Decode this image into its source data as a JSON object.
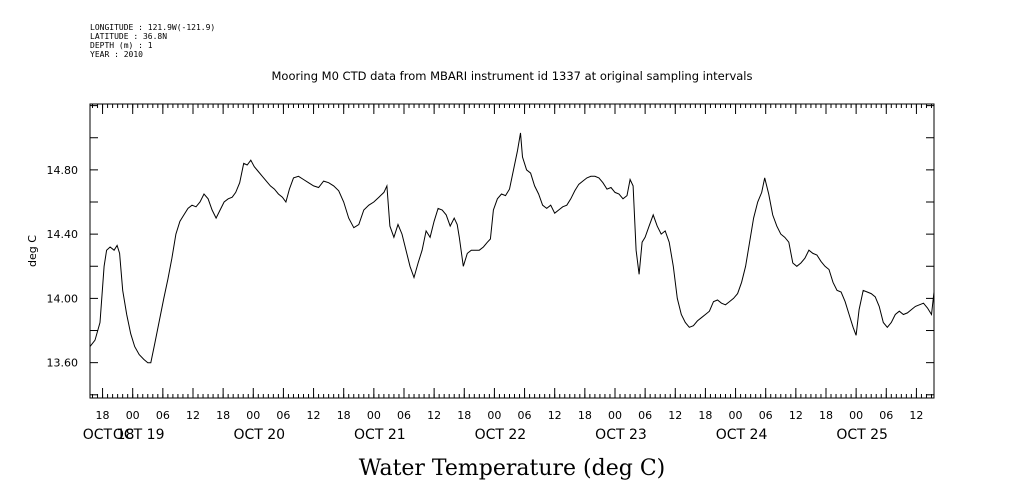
{
  "header": {
    "longitude": "LONGITUDE : 121.9W(-121.9)",
    "latitude": "LATITUDE : 36.8N",
    "depth": "DEPTH (m) : 1",
    "year": "YEAR : 2010"
  },
  "chart_data": {
    "type": "line",
    "title": "Mooring M0 CTD data from MBARI instrument id 1337 at original sampling intervals",
    "xlabel": "Water Temperature (deg C)",
    "ylabel": "deg C",
    "ylim": [
      13.38,
      15.21
    ],
    "yticks": [
      "13.60",
      "14.00",
      "14.40",
      "14.80"
    ],
    "hour_ticks": [
      "18",
      "00",
      "06",
      "12",
      "18",
      "00",
      "06",
      "12",
      "18",
      "00",
      "06",
      "12",
      "18",
      "00",
      "06",
      "12",
      "18",
      "00",
      "06",
      "12",
      "18",
      "00",
      "06",
      "12",
      "18",
      "00",
      "06",
      "12"
    ],
    "day_labels": [
      "OCT 18",
      "OCT 19",
      "OCT 20",
      "OCT 21",
      "OCT 22",
      "OCT 23",
      "OCT 24",
      "OCT 25"
    ],
    "x_units": "hours since Oct 18 00:00 (2010)",
    "xlim": [
      15.5,
      183.5
    ],
    "series": [
      {
        "values": [
          [
            15.5,
            13.7
          ],
          [
            16.5,
            13.74
          ],
          [
            17.5,
            13.85
          ],
          [
            18.3,
            14.2
          ],
          [
            18.8,
            14.3
          ],
          [
            19.5,
            14.32
          ],
          [
            20.3,
            14.3
          ],
          [
            20.9,
            14.33
          ],
          [
            21.4,
            14.28
          ],
          [
            22.0,
            14.05
          ],
          [
            22.8,
            13.9
          ],
          [
            23.6,
            13.78
          ],
          [
            24.4,
            13.7
          ],
          [
            25.3,
            13.65
          ],
          [
            26.2,
            13.62
          ],
          [
            27.0,
            13.6
          ],
          [
            27.6,
            13.6
          ],
          [
            28.4,
            13.72
          ],
          [
            29.3,
            13.86
          ],
          [
            30.2,
            14.0
          ],
          [
            31.0,
            14.12
          ],
          [
            31.8,
            14.25
          ],
          [
            32.6,
            14.4
          ],
          [
            33.4,
            14.48
          ],
          [
            34.2,
            14.52
          ],
          [
            35.0,
            14.56
          ],
          [
            35.8,
            14.58
          ],
          [
            36.6,
            14.57
          ],
          [
            37.4,
            14.6
          ],
          [
            38.2,
            14.65
          ],
          [
            39.0,
            14.62
          ],
          [
            39.8,
            14.55
          ],
          [
            40.6,
            14.5
          ],
          [
            41.4,
            14.55
          ],
          [
            42.2,
            14.6
          ],
          [
            43.0,
            14.62
          ],
          [
            43.8,
            14.63
          ],
          [
            44.5,
            14.66
          ],
          [
            45.3,
            14.72
          ],
          [
            46.1,
            14.84
          ],
          [
            46.8,
            14.83
          ],
          [
            47.5,
            14.86
          ],
          [
            48.2,
            14.82
          ],
          [
            49.0,
            14.79
          ],
          [
            49.8,
            14.76
          ],
          [
            50.6,
            14.73
          ],
          [
            51.4,
            14.7
          ],
          [
            52.2,
            14.68
          ],
          [
            53.0,
            14.65
          ],
          [
            53.8,
            14.63
          ],
          [
            54.5,
            14.6
          ],
          [
            55.2,
            14.68
          ],
          [
            56.0,
            14.75
          ],
          [
            57.0,
            14.76
          ],
          [
            58.0,
            14.74
          ],
          [
            59.0,
            14.72
          ],
          [
            60.0,
            14.7
          ],
          [
            61.0,
            14.69
          ],
          [
            62.0,
            14.73
          ],
          [
            63.0,
            14.72
          ],
          [
            64.0,
            14.7
          ],
          [
            65.0,
            14.67
          ],
          [
            66.0,
            14.6
          ],
          [
            67.0,
            14.5
          ],
          [
            68.0,
            14.44
          ],
          [
            69.0,
            14.46
          ],
          [
            70.0,
            14.55
          ],
          [
            71.0,
            14.58
          ],
          [
            72.0,
            14.6
          ],
          [
            73.0,
            14.63
          ],
          [
            74.0,
            14.66
          ],
          [
            74.6,
            14.7
          ],
          [
            75.2,
            14.45
          ],
          [
            76.0,
            14.38
          ],
          [
            76.8,
            14.46
          ],
          [
            77.6,
            14.4
          ],
          [
            78.4,
            14.3
          ],
          [
            79.2,
            14.2
          ],
          [
            80.0,
            14.13
          ],
          [
            80.8,
            14.22
          ],
          [
            81.6,
            14.3
          ],
          [
            82.4,
            14.42
          ],
          [
            83.2,
            14.38
          ],
          [
            84.0,
            14.48
          ],
          [
            84.8,
            14.56
          ],
          [
            85.6,
            14.55
          ],
          [
            86.4,
            14.52
          ],
          [
            87.2,
            14.45
          ],
          [
            88.0,
            14.5
          ],
          [
            88.6,
            14.46
          ],
          [
            89.0,
            14.38
          ],
          [
            89.8,
            14.2
          ],
          [
            90.6,
            14.28
          ],
          [
            91.4,
            14.3
          ],
          [
            92.2,
            14.3
          ],
          [
            93.0,
            14.3
          ],
          [
            93.8,
            14.32
          ],
          [
            94.6,
            14.35
          ],
          [
            95.2,
            14.37
          ],
          [
            95.8,
            14.55
          ],
          [
            96.6,
            14.62
          ],
          [
            97.4,
            14.65
          ],
          [
            98.2,
            14.64
          ],
          [
            99.0,
            14.68
          ],
          [
            99.8,
            14.8
          ],
          [
            100.6,
            14.92
          ],
          [
            101.2,
            15.03
          ],
          [
            101.6,
            14.88
          ],
          [
            102.4,
            14.8
          ],
          [
            103.2,
            14.78
          ],
          [
            104.0,
            14.7
          ],
          [
            104.8,
            14.65
          ],
          [
            105.6,
            14.58
          ],
          [
            106.4,
            14.56
          ],
          [
            107.2,
            14.58
          ],
          [
            108.0,
            14.53
          ],
          [
            108.8,
            14.55
          ],
          [
            109.6,
            14.57
          ],
          [
            110.4,
            14.58
          ],
          [
            111.2,
            14.62
          ],
          [
            112.0,
            14.67
          ],
          [
            112.8,
            14.71
          ],
          [
            113.6,
            14.73
          ],
          [
            114.4,
            14.75
          ],
          [
            115.2,
            14.76
          ],
          [
            116.0,
            14.76
          ],
          [
            116.8,
            14.75
          ],
          [
            117.6,
            14.72
          ],
          [
            118.4,
            14.68
          ],
          [
            119.2,
            14.69
          ],
          [
            120.0,
            14.66
          ],
          [
            120.8,
            14.65
          ],
          [
            121.6,
            14.62
          ],
          [
            122.4,
            14.64
          ],
          [
            123.0,
            14.74
          ],
          [
            123.6,
            14.7
          ],
          [
            124.2,
            14.3
          ],
          [
            124.8,
            14.15
          ],
          [
            125.4,
            14.35
          ],
          [
            126.0,
            14.38
          ],
          [
            126.8,
            14.45
          ],
          [
            127.6,
            14.52
          ],
          [
            128.4,
            14.45
          ],
          [
            129.2,
            14.4
          ],
          [
            130.0,
            14.42
          ],
          [
            130.8,
            14.35
          ],
          [
            131.6,
            14.2
          ],
          [
            132.4,
            14.0
          ],
          [
            133.2,
            13.9
          ],
          [
            134.0,
            13.85
          ],
          [
            134.8,
            13.82
          ],
          [
            135.6,
            13.83
          ],
          [
            136.4,
            13.86
          ],
          [
            137.2,
            13.88
          ],
          [
            138.0,
            13.9
          ],
          [
            138.8,
            13.92
          ],
          [
            139.6,
            13.98
          ],
          [
            140.4,
            13.99
          ],
          [
            141.2,
            13.97
          ],
          [
            142.0,
            13.96
          ],
          [
            142.8,
            13.98
          ],
          [
            143.6,
            14.0
          ],
          [
            144.4,
            14.03
          ],
          [
            145.2,
            14.1
          ],
          [
            146.0,
            14.2
          ],
          [
            146.8,
            14.35
          ],
          [
            147.6,
            14.5
          ],
          [
            148.4,
            14.6
          ],
          [
            149.2,
            14.66
          ],
          [
            149.8,
            14.75
          ],
          [
            150.6,
            14.65
          ],
          [
            151.4,
            14.52
          ],
          [
            152.2,
            14.45
          ],
          [
            153.0,
            14.4
          ],
          [
            153.8,
            14.38
          ],
          [
            154.6,
            14.35
          ],
          [
            155.4,
            14.22
          ],
          [
            156.2,
            14.2
          ],
          [
            157.0,
            14.22
          ],
          [
            157.8,
            14.25
          ],
          [
            158.6,
            14.3
          ],
          [
            159.4,
            14.28
          ],
          [
            160.2,
            14.27
          ],
          [
            161.0,
            14.23
          ],
          [
            161.8,
            14.2
          ],
          [
            162.6,
            14.18
          ],
          [
            163.4,
            14.1
          ],
          [
            164.2,
            14.05
          ],
          [
            165.0,
            14.04
          ],
          [
            165.8,
            13.98
          ],
          [
            166.6,
            13.9
          ],
          [
            167.4,
            13.82
          ],
          [
            168.0,
            13.77
          ],
          [
            168.6,
            13.93
          ],
          [
            169.4,
            14.05
          ],
          [
            170.2,
            14.04
          ],
          [
            171.0,
            14.03
          ],
          [
            171.8,
            14.01
          ],
          [
            172.6,
            13.95
          ],
          [
            173.4,
            13.85
          ],
          [
            174.2,
            13.82
          ],
          [
            175.0,
            13.85
          ],
          [
            175.8,
            13.9
          ],
          [
            176.6,
            13.92
          ],
          [
            177.4,
            13.9
          ],
          [
            178.2,
            13.91
          ],
          [
            179.0,
            13.93
          ],
          [
            179.8,
            13.95
          ],
          [
            180.6,
            13.96
          ],
          [
            181.4,
            13.97
          ],
          [
            182.2,
            13.94
          ],
          [
            183.0,
            13.9
          ],
          [
            183.5,
            14.04
          ]
        ]
      }
    ],
    "grid": false
  }
}
